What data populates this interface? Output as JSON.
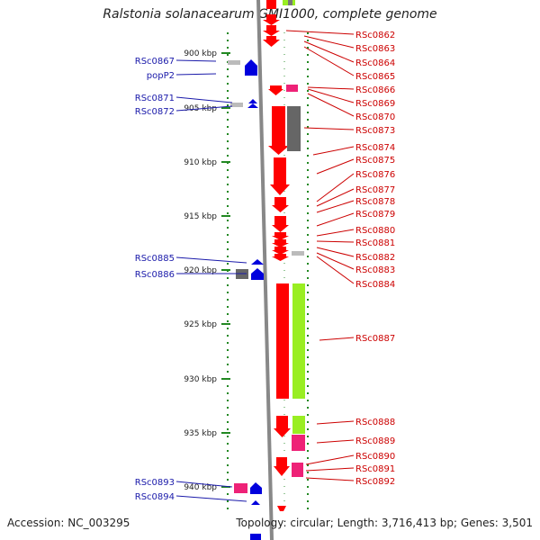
{
  "title": "Ralstonia solanacearum GMI1000, complete genome",
  "accession": "Accession: NC_003295",
  "topology": "Topology: circular; Length: 3,716,413 bp; Genes: 3,501",
  "scale_ticks": [
    "900 kbp",
    "905 kbp",
    "910 kbp",
    "915 kbp",
    "920 kbp",
    "925 kbp",
    "930 kbp",
    "935 kbp",
    "940 kbp"
  ],
  "colors": {
    "cds_forward": "#ff0000",
    "cds_reverse": "#0000ff",
    "gc_high": "#99ee22",
    "trna": "#ee2277",
    "misc": "#666666",
    "right_label": "#cc0000",
    "left_label": "#1a1aaa"
  },
  "right_labels": [
    "RSc0862",
    "RSc0863",
    "RSc0864",
    "RSc0865",
    "RSc0866",
    "RSc0869",
    "RSc0870",
    "RSc0873",
    "RSc0874",
    "RSc0875",
    "RSc0876",
    "RSc0877",
    "RSc0878",
    "RSc0879",
    "RSc0880",
    "RSc0881",
    "RSc0882",
    "RSc0883",
    "RSc0884",
    "RSc0887",
    "RSc0888",
    "RSc0889",
    "RSc0890",
    "RSc0891",
    "RSc0892"
  ],
  "left_labels": [
    "RSc0867",
    "popP2",
    "RSc0871",
    "RSc0872",
    "RSc0885",
    "RSc0886",
    "RSc0893",
    "RSc0894"
  ]
}
